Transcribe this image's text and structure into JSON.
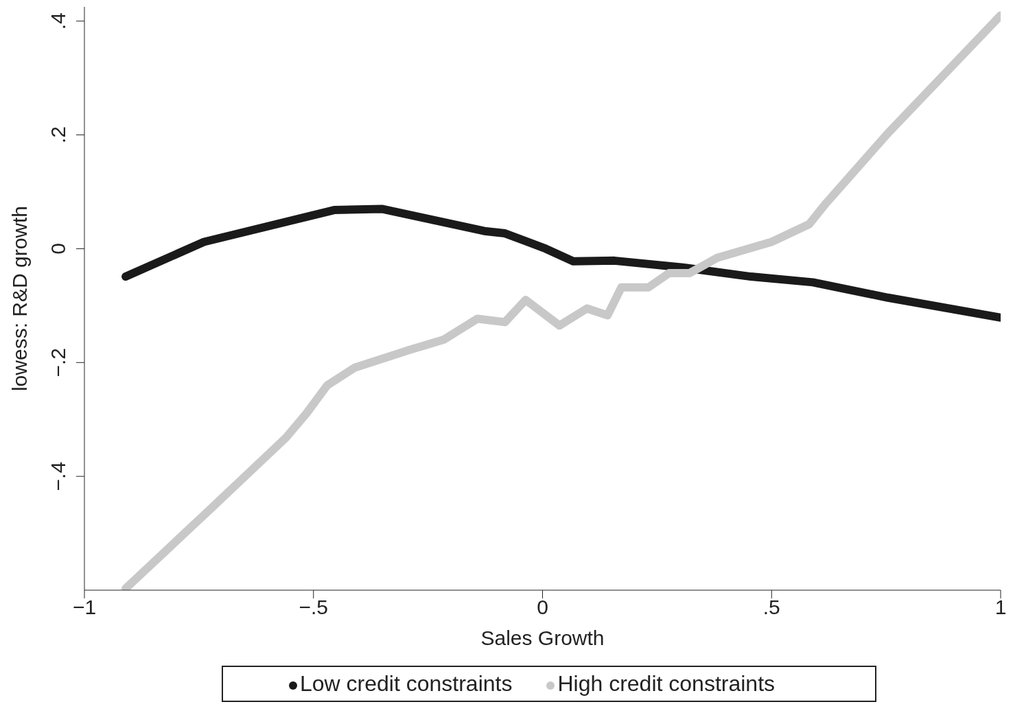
{
  "chart_data": {
    "type": "line",
    "xlabel": "Sales Growth",
    "ylabel": "lowess: R&D growth",
    "xlim": [
      -1,
      1
    ],
    "xticks": [
      {
        "value": -1,
        "label": "−1"
      },
      {
        "value": -0.5,
        "label": "−.5"
      },
      0,
      {
        "value": 0.5,
        "label": ".5"
      },
      1
    ],
    "ylim": [
      -0.6,
      0.425
    ],
    "yticks": [
      {
        "value": -0.4,
        "label": "−.4"
      },
      {
        "value": -0.2,
        "label": "−.2"
      },
      0,
      {
        "value": 0.2,
        "label": ".2"
      },
      {
        "value": 0.4,
        "label": ".4"
      }
    ],
    "grid": false,
    "legend": "bottom",
    "marker": "none",
    "line_style": "solid",
    "series": [
      {
        "name": "Low credit constraints",
        "color": "#1a1a1a",
        "x": [
          -0.91,
          -0.739,
          -0.455,
          -0.351,
          -0.127,
          -0.082,
          0.007,
          0.067,
          0.157,
          0.306,
          0.455,
          0.59,
          0.754,
          1.0
        ],
        "values": [
          -0.049,
          0.012,
          0.068,
          0.07,
          0.031,
          0.027,
          0,
          -0.022,
          -0.021,
          -0.033,
          -0.049,
          -0.059,
          -0.086,
          -0.121
        ]
      },
      {
        "name": "High credit constraints",
        "color": "#c8c8c8",
        "x": [
          -0.91,
          -0.739,
          -0.56,
          -0.515,
          -0.47,
          -0.41,
          -0.291,
          -0.216,
          -0.142,
          -0.082,
          -0.037,
          0.037,
          0.097,
          0.142,
          0.172,
          0.231,
          0.276,
          0.321,
          0.381,
          0.5,
          0.582,
          0.619,
          0.754,
          1.0
        ],
        "values": [
          -0.597,
          -0.468,
          -0.332,
          -0.289,
          -0.24,
          -0.209,
          -0.178,
          -0.16,
          -0.123,
          -0.129,
          -0.09,
          -0.135,
          -0.105,
          -0.117,
          -0.068,
          -0.068,
          -0.043,
          -0.043,
          -0.016,
          0.012,
          0.043,
          0.08,
          0.203,
          0.41
        ]
      }
    ]
  }
}
